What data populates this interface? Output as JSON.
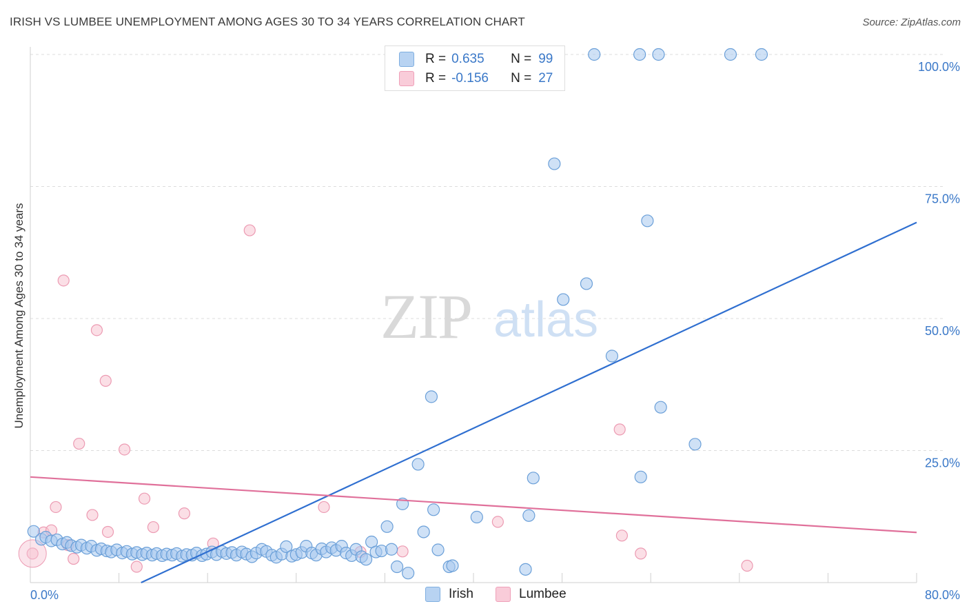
{
  "header": {
    "title": "IRISH VS LUMBEE UNEMPLOYMENT AMONG AGES 30 TO 34 YEARS CORRELATION CHART",
    "source": "Source: ZipAtlas.com"
  },
  "watermark": {
    "zip": "ZIP",
    "atlas": "atlas"
  },
  "legend": {
    "irish": {
      "r_label": "R =",
      "r_value": "0.635",
      "n_label": "N =",
      "n_value": "99"
    },
    "lumbee": {
      "r_label": "R =",
      "r_value": "-0.156",
      "n_label": "N =",
      "n_value": "27"
    }
  },
  "bottom_legend": {
    "irish": "Irish",
    "lumbee": "Lumbee"
  },
  "colors": {
    "irish_fill": "#a8c8ef",
    "irish_stroke": "#6a9fd8",
    "irish_line": "#2f6fd0",
    "lumbee_fill": "#f7c4d2",
    "lumbee_stroke": "#ec9ab2",
    "lumbee_line": "#e0709a",
    "tick_label": "#3a78c8",
    "grid": "#dcdcdc"
  },
  "chart_data": {
    "type": "scatter",
    "title": "IRISH VS LUMBEE UNEMPLOYMENT AMONG AGES 30 TO 34 YEARS CORRELATION CHART",
    "xlabel": "",
    "ylabel": "Unemployment Among Ages 30 to 34 years",
    "xlim": [
      0,
      80
    ],
    "ylim": [
      0,
      100
    ],
    "x_ticks": [
      "0.0%",
      "80.0%"
    ],
    "y_ticks": [
      "25.0%",
      "50.0%",
      "75.0%",
      "100.0%"
    ],
    "grid": true,
    "legend_position": "top-center",
    "series": [
      {
        "name": "Irish",
        "points": [
          [
            0.3,
            9.7
          ],
          [
            1.0,
            8.2
          ],
          [
            1.4,
            8.6
          ],
          [
            1.9,
            7.9
          ],
          [
            2.4,
            8.1
          ],
          [
            2.9,
            7.3
          ],
          [
            3.3,
            7.6
          ],
          [
            3.7,
            7.0
          ],
          [
            4.2,
            6.7
          ],
          [
            4.6,
            7.1
          ],
          [
            5.1,
            6.5
          ],
          [
            5.5,
            6.9
          ],
          [
            6.0,
            6.1
          ],
          [
            6.4,
            6.4
          ],
          [
            6.9,
            6.0
          ],
          [
            7.3,
            5.8
          ],
          [
            7.8,
            6.2
          ],
          [
            8.3,
            5.6
          ],
          [
            8.7,
            5.9
          ],
          [
            9.2,
            5.4
          ],
          [
            9.6,
            5.7
          ],
          [
            10.1,
            5.3
          ],
          [
            10.5,
            5.6
          ],
          [
            11.0,
            5.2
          ],
          [
            11.4,
            5.5
          ],
          [
            11.9,
            5.1
          ],
          [
            12.3,
            5.4
          ],
          [
            12.8,
            5.2
          ],
          [
            13.2,
            5.5
          ],
          [
            13.7,
            5.0
          ],
          [
            14.1,
            5.3
          ],
          [
            14.6,
            5.2
          ],
          [
            15.0,
            5.6
          ],
          [
            15.5,
            5.1
          ],
          [
            15.9,
            5.4
          ],
          [
            16.4,
            5.8
          ],
          [
            16.8,
            5.3
          ],
          [
            17.3,
            5.9
          ],
          [
            17.7,
            5.5
          ],
          [
            18.2,
            5.7
          ],
          [
            18.6,
            5.2
          ],
          [
            19.1,
            5.8
          ],
          [
            19.5,
            5.4
          ],
          [
            20.0,
            4.9
          ],
          [
            20.4,
            5.6
          ],
          [
            20.9,
            6.3
          ],
          [
            21.3,
            5.9
          ],
          [
            21.8,
            5.2
          ],
          [
            22.2,
            4.8
          ],
          [
            22.7,
            5.4
          ],
          [
            23.1,
            6.8
          ],
          [
            23.6,
            5.0
          ],
          [
            24.0,
            5.3
          ],
          [
            24.5,
            5.7
          ],
          [
            24.9,
            6.9
          ],
          [
            25.4,
            5.6
          ],
          [
            25.8,
            5.2
          ],
          [
            26.3,
            6.4
          ],
          [
            26.7,
            5.8
          ],
          [
            27.2,
            6.6
          ],
          [
            27.6,
            6.1
          ],
          [
            28.1,
            6.9
          ],
          [
            28.5,
            5.6
          ],
          [
            29.0,
            5.1
          ],
          [
            29.4,
            6.3
          ],
          [
            29.9,
            4.9
          ],
          [
            30.3,
            4.4
          ],
          [
            30.8,
            7.7
          ],
          [
            31.2,
            5.8
          ],
          [
            31.7,
            6.0
          ],
          [
            32.2,
            10.6
          ],
          [
            32.6,
            6.3
          ],
          [
            33.1,
            3.0
          ],
          [
            33.6,
            14.9
          ],
          [
            34.1,
            1.8
          ],
          [
            35.0,
            22.4
          ],
          [
            35.5,
            9.6
          ],
          [
            36.4,
            13.8
          ],
          [
            36.2,
            35.2
          ],
          [
            36.8,
            6.2
          ],
          [
            37.8,
            3.0
          ],
          [
            38.1,
            3.2
          ],
          [
            40.3,
            12.4
          ],
          [
            44.7,
            2.5
          ],
          [
            45.0,
            12.7
          ],
          [
            45.4,
            19.8
          ],
          [
            48.1,
            53.6
          ],
          [
            50.9,
            100
          ],
          [
            52.5,
            42.9
          ],
          [
            55.0,
            100
          ],
          [
            55.1,
            20.0
          ],
          [
            55.7,
            68.5
          ],
          [
            56.7,
            100
          ],
          [
            56.9,
            33.2
          ],
          [
            60.0,
            26.2
          ],
          [
            63.2,
            100
          ],
          [
            66.0,
            100
          ],
          [
            47.3,
            79.3
          ],
          [
            50.2,
            56.6
          ]
        ]
      },
      {
        "name": "Lumbee",
        "points": [
          [
            0.2,
            5.5
          ],
          [
            1.2,
            9.5
          ],
          [
            1.9,
            9.9
          ],
          [
            2.3,
            14.3
          ],
          [
            3.0,
            57.2
          ],
          [
            3.4,
            7.1
          ],
          [
            3.9,
            4.5
          ],
          [
            4.4,
            26.3
          ],
          [
            5.6,
            12.8
          ],
          [
            6.0,
            47.8
          ],
          [
            6.8,
            38.2
          ],
          [
            7.0,
            9.6
          ],
          [
            8.5,
            25.2
          ],
          [
            9.6,
            3.0
          ],
          [
            10.3,
            15.9
          ],
          [
            11.1,
            10.5
          ],
          [
            13.9,
            13.1
          ],
          [
            16.5,
            7.4
          ],
          [
            19.8,
            66.7
          ],
          [
            26.5,
            14.3
          ],
          [
            29.8,
            5.8
          ],
          [
            33.6,
            5.9
          ],
          [
            42.2,
            11.5
          ],
          [
            53.2,
            29.0
          ],
          [
            53.4,
            8.9
          ],
          [
            55.1,
            5.5
          ],
          [
            64.7,
            3.2
          ]
        ]
      }
    ],
    "trend_lines": [
      {
        "name": "Irish",
        "from": [
          10.0,
          0.0
        ],
        "to": [
          80.0,
          68.2
        ]
      },
      {
        "name": "Lumbee",
        "from": [
          0.0,
          20.0
        ],
        "to": [
          80.0,
          9.5
        ]
      }
    ]
  }
}
